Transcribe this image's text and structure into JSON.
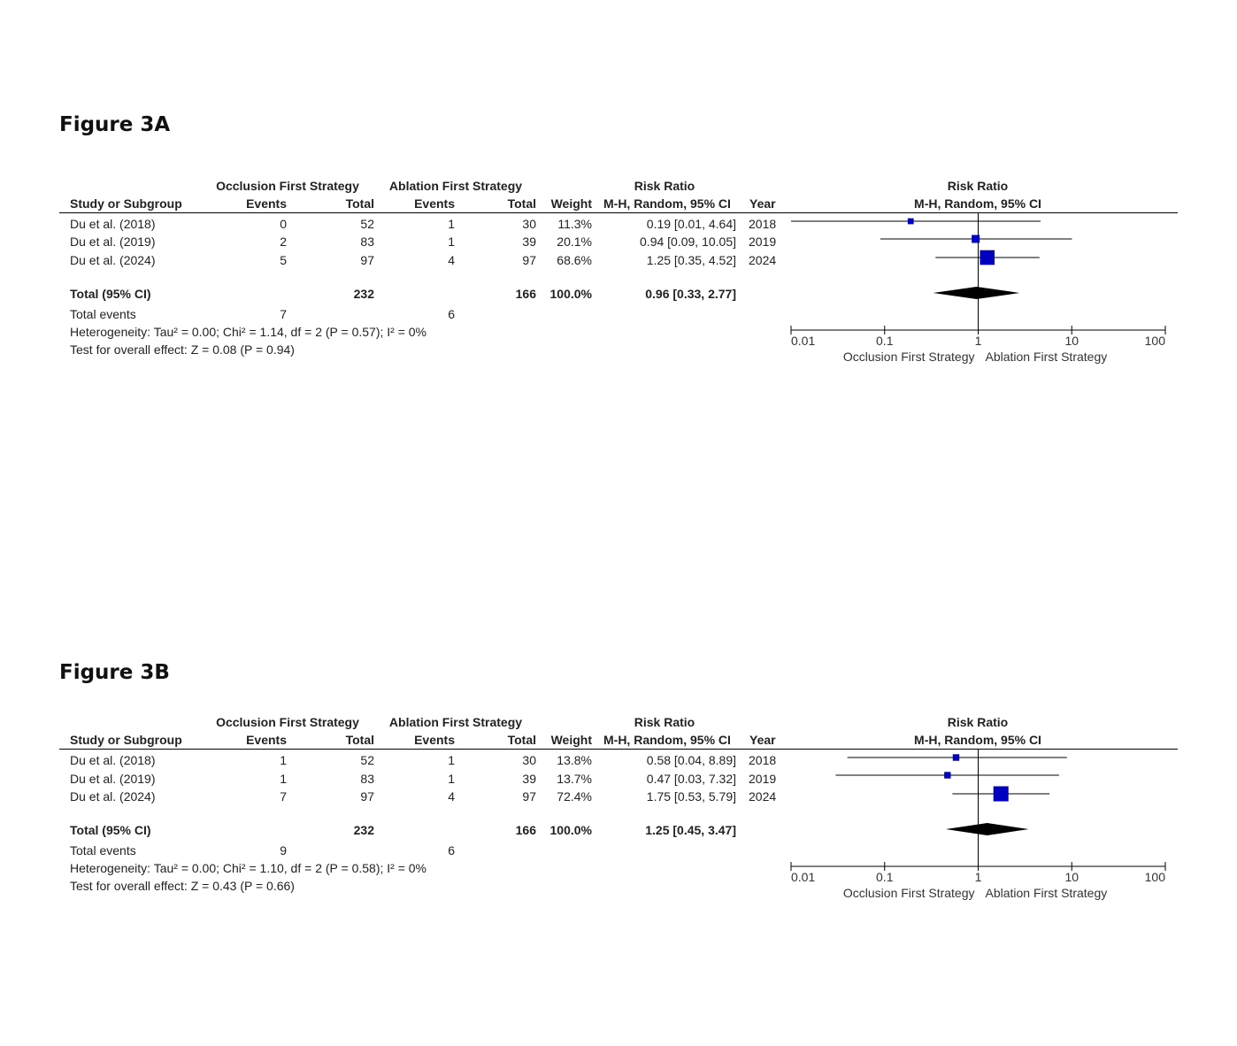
{
  "chart_data": [
    {
      "type": "forest",
      "title": "Figure 3A",
      "group_headers": {
        "experimental": "Occlusion First Strategy",
        "control": "Ablation First Strategy",
        "effect": "Risk Ratio",
        "plot": "Risk Ratio"
      },
      "column_headers": {
        "study": "Study or Subgroup",
        "events": "Events",
        "total": "Total",
        "weight": "Weight",
        "method": "M-H, Random, 95% CI",
        "year": "Year",
        "plot_method": "M-H, Random, 95% CI"
      },
      "studies": [
        {
          "name": "Du et al. (2018)",
          "exp_events": "0",
          "exp_total": "52",
          "ctl_events": "1",
          "ctl_total": "30",
          "weight": "11.3%",
          "ci_text": "0.19 [0.01, 4.64]",
          "year": "2018",
          "rr": 0.19,
          "lower": 0.01,
          "upper": 4.64,
          "weight_value": 11.3
        },
        {
          "name": "Du et al. (2019)",
          "exp_events": "2",
          "exp_total": "83",
          "ctl_events": "1",
          "ctl_total": "39",
          "weight": "20.1%",
          "ci_text": "0.94 [0.09, 10.05]",
          "year": "2019",
          "rr": 0.94,
          "lower": 0.09,
          "upper": 10.05,
          "weight_value": 20.1
        },
        {
          "name": "Du et al. (2024)",
          "exp_events": "5",
          "exp_total": "97",
          "ctl_events": "4",
          "ctl_total": "97",
          "weight": "68.6%",
          "ci_text": "1.25 [0.35, 4.52]",
          "year": "2024",
          "rr": 1.25,
          "lower": 0.35,
          "upper": 4.52,
          "weight_value": 68.6
        }
      ],
      "total": {
        "label": "Total (95% CI)",
        "exp_total": "232",
        "ctl_total": "166",
        "weight": "100.0%",
        "ci_text": "0.96 [0.33, 2.77]",
        "rr": 0.96,
        "lower": 0.33,
        "upper": 2.77
      },
      "total_events": {
        "label": "Total events",
        "exp": "7",
        "ctl": "6"
      },
      "heterogeneity": "Heterogeneity: Tau² = 0.00; Chi² = 1.14, df = 2 (P = 0.57); I² = 0%",
      "overall_effect": "Test for overall effect: Z = 0.08 (P = 0.94)",
      "axis": {
        "scale": "log",
        "ticks": [
          0.01,
          0.1,
          1,
          10,
          100
        ],
        "tick_labels": [
          "0.01",
          "0.1",
          "1",
          "10",
          "100"
        ],
        "xlim": [
          0.01,
          100
        ],
        "left_label": "Occlusion First Strategy",
        "right_label": "Ablation First Strategy"
      }
    },
    {
      "type": "forest",
      "title": "Figure 3B",
      "group_headers": {
        "experimental": "Occlusion First Strategy",
        "control": "Ablation First Strategy",
        "effect": "Risk Ratio",
        "plot": "Risk Ratio"
      },
      "column_headers": {
        "study": "Study or Subgroup",
        "events": "Events",
        "total": "Total",
        "weight": "Weight",
        "method": "M-H, Random, 95% CI",
        "year": "Year",
        "plot_method": "M-H, Random, 95% CI"
      },
      "studies": [
        {
          "name": "Du et al. (2018)",
          "exp_events": "1",
          "exp_total": "52",
          "ctl_events": "1",
          "ctl_total": "30",
          "weight": "13.8%",
          "ci_text": "0.58 [0.04, 8.89]",
          "year": "2018",
          "rr": 0.58,
          "lower": 0.04,
          "upper": 8.89,
          "weight_value": 13.8
        },
        {
          "name": "Du et al. (2019)",
          "exp_events": "1",
          "exp_total": "83",
          "ctl_events": "1",
          "ctl_total": "39",
          "weight": "13.7%",
          "ci_text": "0.47 [0.03, 7.32]",
          "year": "2019",
          "rr": 0.47,
          "lower": 0.03,
          "upper": 7.32,
          "weight_value": 13.7
        },
        {
          "name": "Du et al. (2024)",
          "exp_events": "7",
          "exp_total": "97",
          "ctl_events": "4",
          "ctl_total": "97",
          "weight": "72.4%",
          "ci_text": "1.75 [0.53, 5.79]",
          "year": "2024",
          "rr": 1.75,
          "lower": 0.53,
          "upper": 5.79,
          "weight_value": 72.4
        }
      ],
      "total": {
        "label": "Total (95% CI)",
        "exp_total": "232",
        "ctl_total": "166",
        "weight": "100.0%",
        "ci_text": "1.25 [0.45, 3.47]",
        "rr": 1.25,
        "lower": 0.45,
        "upper": 3.47
      },
      "total_events": {
        "label": "Total events",
        "exp": "9",
        "ctl": "6"
      },
      "heterogeneity": "Heterogeneity: Tau² = 0.00; Chi² = 1.10, df = 2 (P = 0.58); I² = 0%",
      "overall_effect": "Test for overall effect: Z = 0.43 (P = 0.66)",
      "axis": {
        "scale": "log",
        "ticks": [
          0.01,
          0.1,
          1,
          10,
          100
        ],
        "tick_labels": [
          "0.01",
          "0.1",
          "1",
          "10",
          "100"
        ],
        "xlim": [
          0.01,
          100
        ],
        "left_label": "Occlusion First Strategy",
        "right_label": "Ablation First Strategy"
      }
    }
  ],
  "colors": {
    "marker": "#0000c0",
    "diamond": "#000000",
    "line": "#000000",
    "text": "#222222"
  }
}
